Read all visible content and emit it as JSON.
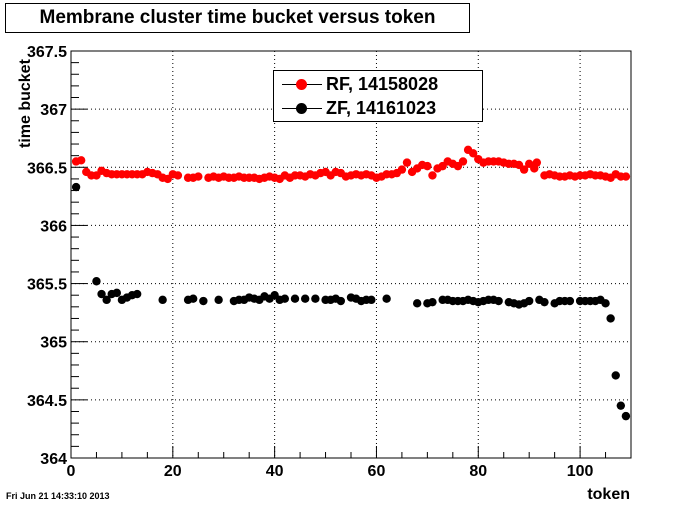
{
  "chart_data": {
    "type": "scatter",
    "title": "Membrane cluster time bucket versus token",
    "xlabel": "token",
    "ylabel": "time bucket",
    "xlim": [
      0,
      110
    ],
    "ylim": [
      364,
      367.5
    ],
    "x_ticks": [
      "0",
      "20",
      "40",
      "60",
      "80",
      "100"
    ],
    "y_ticks": [
      "364",
      "364.5",
      "365",
      "365.5",
      "366",
      "366.5",
      "367",
      "367.5"
    ],
    "grid": true,
    "legend_placement": "top-center",
    "series": [
      {
        "name": "RF, 14158028",
        "color": "#ff0000",
        "points": [
          [
            1,
            366.55
          ],
          [
            2,
            366.56
          ],
          [
            3,
            366.46
          ],
          [
            4,
            366.43
          ],
          [
            5,
            366.43
          ],
          [
            6,
            366.47
          ],
          [
            7,
            366.45
          ],
          [
            8,
            366.44
          ],
          [
            9,
            366.44
          ],
          [
            10,
            366.44
          ],
          [
            11,
            366.44
          ],
          [
            12,
            366.44
          ],
          [
            13,
            366.44
          ],
          [
            14,
            366.44
          ],
          [
            15,
            366.46
          ],
          [
            16,
            366.45
          ],
          [
            17,
            366.44
          ],
          [
            18,
            366.41
          ],
          [
            19,
            366.4
          ],
          [
            20,
            366.44
          ],
          [
            21,
            366.43
          ],
          [
            23,
            366.41
          ],
          [
            24,
            366.41
          ],
          [
            25,
            366.42
          ],
          [
            27,
            366.41
          ],
          [
            28,
            366.42
          ],
          [
            29,
            366.41
          ],
          [
            30,
            366.42
          ],
          [
            31,
            366.41
          ],
          [
            32,
            366.41
          ],
          [
            33,
            366.42
          ],
          [
            34,
            366.41
          ],
          [
            35,
            366.41
          ],
          [
            36,
            366.41
          ],
          [
            37,
            366.4
          ],
          [
            38,
            366.41
          ],
          [
            39,
            366.42
          ],
          [
            40,
            366.41
          ],
          [
            41,
            366.4
          ],
          [
            42,
            366.43
          ],
          [
            43,
            366.41
          ],
          [
            44,
            366.43
          ],
          [
            45,
            366.43
          ],
          [
            46,
            366.42
          ],
          [
            47,
            366.44
          ],
          [
            48,
            366.43
          ],
          [
            49,
            366.45
          ],
          [
            50,
            366.46
          ],
          [
            51,
            366.43
          ],
          [
            52,
            366.46
          ],
          [
            53,
            366.45
          ],
          [
            54,
            366.42
          ],
          [
            55,
            366.43
          ],
          [
            56,
            366.44
          ],
          [
            57,
            366.43
          ],
          [
            58,
            366.44
          ],
          [
            59,
            366.43
          ],
          [
            60,
            366.41
          ],
          [
            61,
            366.42
          ],
          [
            62,
            366.44
          ],
          [
            63,
            366.44
          ],
          [
            64,
            366.45
          ],
          [
            65,
            366.48
          ],
          [
            66,
            366.54
          ],
          [
            67,
            366.46
          ],
          [
            68,
            366.49
          ],
          [
            69,
            366.52
          ],
          [
            70,
            366.51
          ],
          [
            71,
            366.43
          ],
          [
            72,
            366.49
          ],
          [
            73,
            366.51
          ],
          [
            74,
            366.55
          ],
          [
            75,
            366.53
          ],
          [
            76,
            366.51
          ],
          [
            77,
            366.55
          ],
          [
            78,
            366.65
          ],
          [
            79,
            366.62
          ],
          [
            80,
            366.57
          ],
          [
            81,
            366.54
          ],
          [
            82,
            366.55
          ],
          [
            83,
            366.55
          ],
          [
            84,
            366.55
          ],
          [
            85,
            366.54
          ],
          [
            86,
            366.53
          ],
          [
            87,
            366.53
          ],
          [
            88,
            366.52
          ],
          [
            89,
            366.48
          ],
          [
            90,
            366.53
          ],
          [
            91,
            366.49
          ],
          [
            91.5,
            366.54
          ],
          [
            93,
            366.43
          ],
          [
            94,
            366.44
          ],
          [
            95,
            366.43
          ],
          [
            96,
            366.42
          ],
          [
            97,
            366.42
          ],
          [
            98,
            366.43
          ],
          [
            99,
            366.42
          ],
          [
            100,
            366.43
          ],
          [
            101,
            366.43
          ],
          [
            102,
            366.44
          ],
          [
            103,
            366.43
          ],
          [
            104,
            366.43
          ],
          [
            105,
            366.42
          ],
          [
            106,
            366.41
          ],
          [
            107,
            366.44
          ],
          [
            108,
            366.42
          ],
          [
            109,
            366.42
          ]
        ]
      },
      {
        "name": "ZF, 14161023",
        "color": "#000000",
        "points": [
          [
            1,
            366.33
          ],
          [
            5,
            365.52
          ],
          [
            6,
            365.41
          ],
          [
            7,
            365.36
          ],
          [
            8,
            365.41
          ],
          [
            9,
            365.42
          ],
          [
            10,
            365.36
          ],
          [
            11,
            365.38
          ],
          [
            12,
            365.4
          ],
          [
            13,
            365.41
          ],
          [
            18,
            365.36
          ],
          [
            23,
            365.36
          ],
          [
            24,
            365.37
          ],
          [
            26,
            365.35
          ],
          [
            29,
            365.36
          ],
          [
            32,
            365.35
          ],
          [
            33,
            365.36
          ],
          [
            34,
            365.36
          ],
          [
            35,
            365.38
          ],
          [
            36,
            365.37
          ],
          [
            37,
            365.36
          ],
          [
            38,
            365.39
          ],
          [
            39,
            365.37
          ],
          [
            40,
            365.4
          ],
          [
            41,
            365.36
          ],
          [
            42,
            365.37
          ],
          [
            44,
            365.37
          ],
          [
            46,
            365.37
          ],
          [
            48,
            365.37
          ],
          [
            50,
            365.36
          ],
          [
            51,
            365.36
          ],
          [
            52,
            365.37
          ],
          [
            53,
            365.35
          ],
          [
            55,
            365.38
          ],
          [
            56,
            365.37
          ],
          [
            57,
            365.35
          ],
          [
            58,
            365.36
          ],
          [
            59,
            365.36
          ],
          [
            62,
            365.37
          ],
          [
            68,
            365.33
          ],
          [
            70,
            365.33
          ],
          [
            71,
            365.34
          ],
          [
            73,
            365.36
          ],
          [
            74,
            365.36
          ],
          [
            75,
            365.35
          ],
          [
            76,
            365.35
          ],
          [
            77,
            365.35
          ],
          [
            78,
            365.36
          ],
          [
            79,
            365.35
          ],
          [
            80,
            365.34
          ],
          [
            81,
            365.35
          ],
          [
            82,
            365.36
          ],
          [
            83,
            365.36
          ],
          [
            84,
            365.35
          ],
          [
            86,
            365.34
          ],
          [
            87,
            365.33
          ],
          [
            88,
            365.32
          ],
          [
            89,
            365.33
          ],
          [
            90,
            365.35
          ],
          [
            92,
            365.36
          ],
          [
            93,
            365.34
          ],
          [
            95,
            365.33
          ],
          [
            96,
            365.35
          ],
          [
            97,
            365.35
          ],
          [
            98,
            365.35
          ],
          [
            100,
            365.35
          ],
          [
            101,
            365.35
          ],
          [
            102,
            365.35
          ],
          [
            103,
            365.35
          ],
          [
            104,
            365.36
          ],
          [
            105,
            365.33
          ],
          [
            106,
            365.2
          ],
          [
            107,
            364.71
          ],
          [
            108,
            364.45
          ],
          [
            109,
            364.36
          ]
        ]
      }
    ]
  },
  "footer": {
    "timestamp": "Fri Jun 21 14:33:10 2013"
  }
}
